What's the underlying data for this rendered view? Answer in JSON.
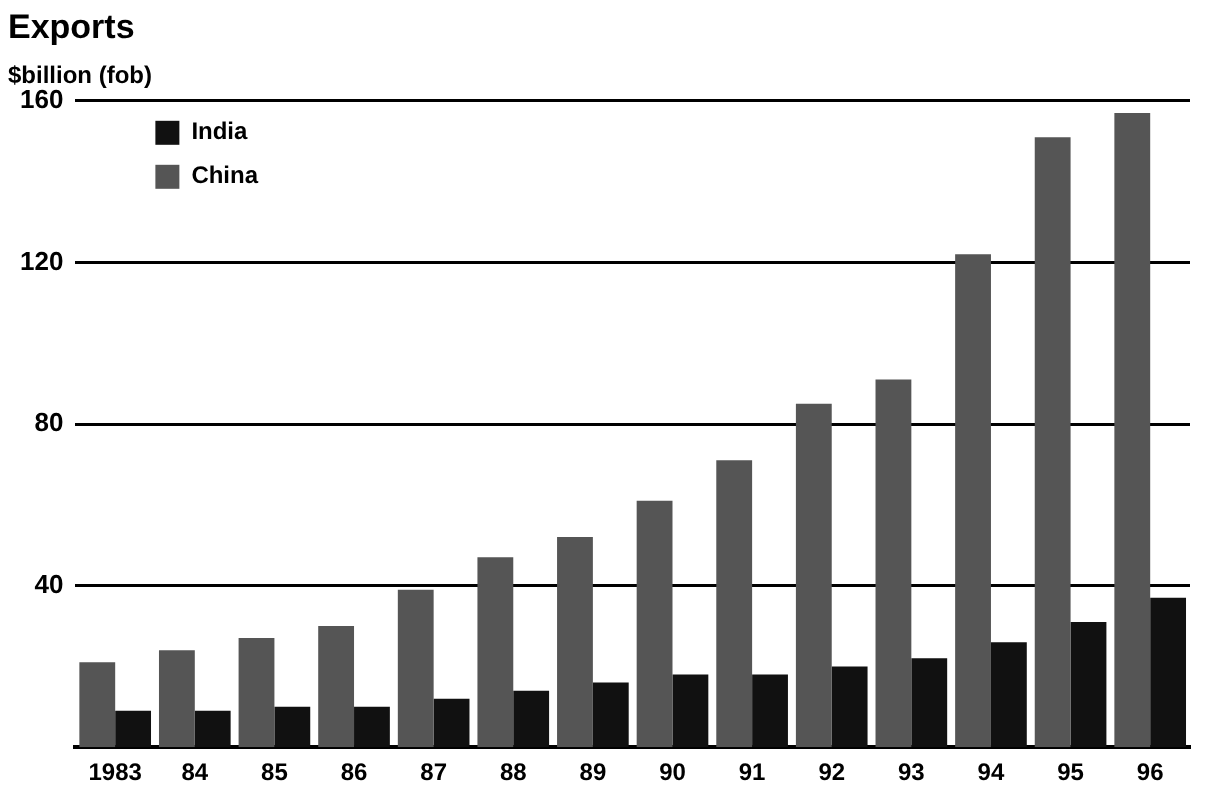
{
  "chart_data": {
    "type": "bar",
    "title": "Exports",
    "ylabel": "$billion (fob)",
    "categories": [
      "1983",
      "84",
      "85",
      "86",
      "87",
      "88",
      "89",
      "90",
      "91",
      "92",
      "93",
      "94",
      "95",
      "96"
    ],
    "series": [
      {
        "name": "India",
        "color": "#111111",
        "values": [
          9,
          9,
          10,
          10,
          12,
          14,
          16,
          18,
          18,
          20,
          22,
          26,
          31,
          37
        ]
      },
      {
        "name": "China",
        "color": "#555555",
        "values": [
          21,
          24,
          27,
          30,
          39,
          47,
          52,
          61,
          71,
          85,
          91,
          122,
          151,
          157
        ]
      }
    ],
    "ylim": [
      0,
      160
    ],
    "yticks": [
      40,
      80,
      120,
      160
    ],
    "grid": "y",
    "legend": "top left"
  }
}
